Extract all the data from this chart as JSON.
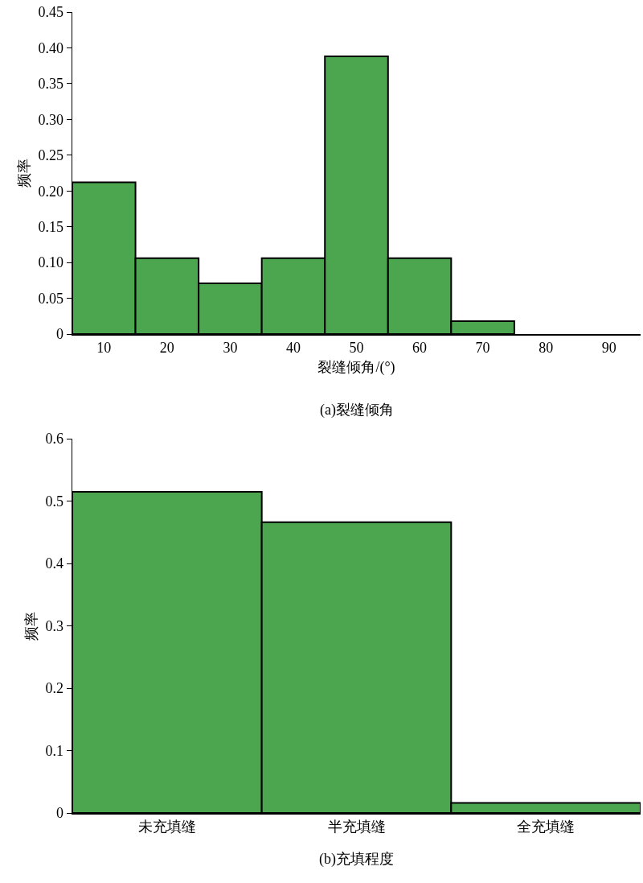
{
  "chart_data": [
    {
      "type": "bar",
      "categories": [
        "10",
        "20",
        "30",
        "40",
        "50",
        "60",
        "70",
        "80",
        "90"
      ],
      "values": [
        0.212,
        0.106,
        0.071,
        0.106,
        0.388,
        0.106,
        0.018,
        0,
        0
      ],
      "color": "#4ca64f",
      "xlabel": "裂缝倾角/(°)",
      "ylabel": "频率",
      "ylim": [
        0,
        0.45
      ],
      "yticks": [
        0,
        {
          "value": 0.05,
          "label": "0.05"
        },
        {
          "value": 0.1,
          "label": "0.10"
        },
        {
          "value": 0.15,
          "label": "0.15"
        },
        {
          "value": 0.2,
          "label": "0.20"
        },
        {
          "value": 0.25,
          "label": "0.25"
        },
        {
          "value": 0.3,
          "label": "0.30"
        },
        {
          "value": 0.35,
          "label": "0.35"
        },
        {
          "value": 0.4,
          "label": "0.40"
        },
        {
          "value": 0.45,
          "label": "0.45"
        }
      ],
      "grid": false,
      "annotations": [
        "(a)裂缝倾角"
      ]
    },
    {
      "type": "bar",
      "categories": [
        "未充填缝",
        "半充填缝",
        "全充填缝"
      ],
      "values": [
        0.515,
        0.466,
        0.016
      ],
      "color": "#4ca64f",
      "ylabel": "频率",
      "ylim": [
        0,
        0.6
      ],
      "yticks": [
        0,
        0.1,
        0.2,
        0.3,
        0.4,
        0.5,
        0.6
      ],
      "grid": false,
      "annotations": [
        "(b)充填程度"
      ]
    }
  ]
}
